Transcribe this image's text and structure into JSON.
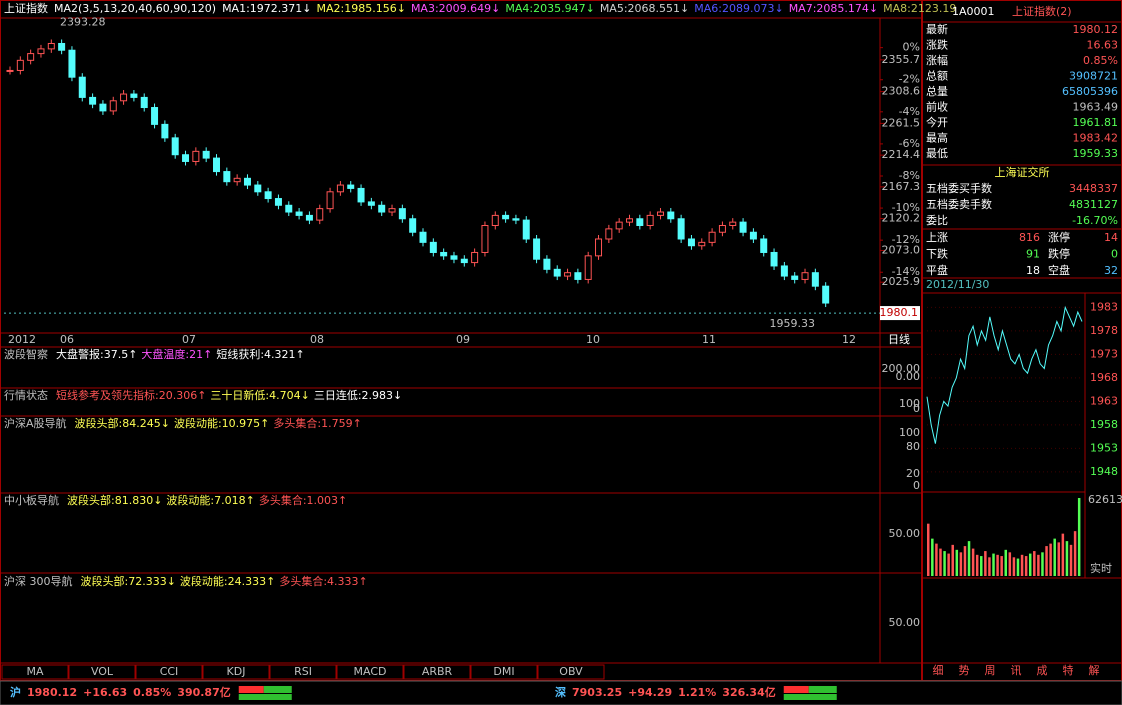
{
  "main_chart": {
    "title": "上证指数",
    "ma_params": "MA2(3,5,13,20,40,60,90,120)",
    "ma_labels": [
      {
        "text": "MA1:1972.371↓",
        "color": "#ffffff"
      },
      {
        "text": "MA2:1985.156↓",
        "color": "#ffff54"
      },
      {
        "text": "MA3:2009.649↓",
        "color": "#ff54ff"
      },
      {
        "text": "MA4:2035.947↓",
        "color": "#54ff54"
      },
      {
        "text": "MA5:2068.551↓",
        "color": "#d0d0d0"
      },
      {
        "text": "MA6:2089.073↓",
        "color": "#5454ff"
      },
      {
        "text": "MA7:2085.174↓",
        "color": "#ff54ff"
      },
      {
        "text": "MA8:2123.19",
        "color": "#c0c054"
      }
    ],
    "closes": [
      2340,
      2355,
      2365,
      2372,
      2380,
      2370,
      2330,
      2300,
      2290,
      2280,
      2295,
      2305,
      2300,
      2285,
      2260,
      2240,
      2215,
      2205,
      2220,
      2210,
      2190,
      2175,
      2180,
      2170,
      2160,
      2150,
      2140,
      2130,
      2125,
      2118,
      2135,
      2160,
      2170,
      2165,
      2145,
      2140,
      2130,
      2135,
      2120,
      2100,
      2085,
      2070,
      2065,
      2060,
      2055,
      2070,
      2110,
      2125,
      2120,
      2118,
      2090,
      2060,
      2045,
      2035,
      2040,
      2030,
      2065,
      2090,
      2105,
      2115,
      2120,
      2110,
      2125,
      2130,
      2120,
      2090,
      2080,
      2085,
      2100,
      2110,
      2115,
      2100,
      2090,
      2070,
      2050,
      2035,
      2030,
      2040,
      2020,
      1995
    ],
    "ylim": [
      1955,
      2400
    ],
    "yticks": [
      2355.7,
      2308.6,
      2261.5,
      2214.4,
      2167.3,
      2120.2,
      {
        "value": 2073.0,
        "label": "2073.0"
      },
      2025.9
    ],
    "pct_lim": [
      -17.6,
      1.1
    ],
    "pct_ticks": [
      {
        "value": 0,
        "label": "0%"
      },
      {
        "value": -2,
        "label": "-2%"
      },
      {
        "value": -4,
        "label": "-4%"
      },
      {
        "value": -6,
        "label": "-6%"
      },
      {
        "value": -8,
        "label": "-8%"
      },
      {
        "value": -10,
        "label": "-10%"
      },
      {
        "value": -12,
        "label": "-12%"
      },
      {
        "value": -14,
        "label": "-14%"
      }
    ],
    "high": 2393.28,
    "low": 1959.33,
    "last": 1980.1,
    "date_labels": [
      "2012",
      "06",
      "07",
      "08",
      "09",
      "10",
      "11",
      "12"
    ],
    "period": "日线"
  },
  "panels": [
    {
      "name": "波段智察",
      "items": [
        {
          "text": "大盘警报:37.5↑",
          "color": "#ffffff"
        },
        {
          "text": "大盘温度:21↑",
          "color": "#ff54ff"
        },
        {
          "text": "短线获利:4.321↑",
          "color": "#ffffff"
        }
      ],
      "axis_labels": [
        "200.00",
        "0.00"
      ]
    },
    {
      "name": "行情状态",
      "items": [
        {
          "text": "短线参考及领先指标:20.306↑",
          "color": "#ff5454"
        },
        {
          "text": "三十日新低:4.704↓",
          "color": "#ffff54"
        },
        {
          "text": "三日连低:2.983↓",
          "color": "#ffffff"
        }
      ],
      "axis_labels": [
        "100",
        "0"
      ]
    },
    {
      "name": "沪深A股导航",
      "items": [
        {
          "text": "波段头部:84.245↓",
          "color": "#ffff54"
        },
        {
          "text": "波段动能:10.975↑",
          "color": "#ffff54"
        },
        {
          "text": "多头集合:1.759↑",
          "color": "#ff5454"
        }
      ],
      "axis_labels": [
        "100",
        "80",
        "20",
        "0"
      ]
    },
    {
      "name": "中小板导航",
      "items": [
        {
          "text": "波段头部:81.830↓",
          "color": "#ffff54"
        },
        {
          "text": "波段动能:7.018↑",
          "color": "#ffff54"
        },
        {
          "text": "多头集合:1.003↑",
          "color": "#ff5454"
        }
      ],
      "axis_labels": [
        "50.00"
      ]
    },
    {
      "name": "沪深 300导航",
      "items": [
        {
          "text": "波段头部:72.333↓",
          "color": "#ffff54"
        },
        {
          "text": "波段动能:24.333↑",
          "color": "#ffff54"
        },
        {
          "text": "多头集合:4.333↑",
          "color": "#ff5454"
        }
      ],
      "axis_labels": [
        "50.00"
      ]
    }
  ],
  "indicator_tabs": [
    "MA",
    "VOL",
    "CCI",
    "KDJ",
    "RSI",
    "MACD",
    "ARBR",
    "DMI",
    "OBV"
  ],
  "quote": {
    "code": "1A0001",
    "name": "上证指数(2)",
    "rows": [
      [
        "最新",
        "1980.12"
      ],
      [
        "涨跌",
        "16.63"
      ],
      [
        "涨幅",
        "0.85%"
      ],
      [
        "总额",
        "3908721"
      ],
      [
        "总量",
        "65805396"
      ],
      [
        "前收",
        "1963.49"
      ],
      [
        "今开",
        "1961.81"
      ],
      [
        "最高",
        "1983.42"
      ],
      [
        "最低",
        "1959.33"
      ]
    ],
    "exchange": "上海证交所",
    "order_rows": [
      [
        "五档委买手数",
        "3448337"
      ],
      [
        "五档委卖手数",
        "4831127"
      ],
      [
        "委比",
        "-16.70%"
      ]
    ],
    "breadth": [
      [
        "上涨",
        "816",
        "涨停",
        "14"
      ],
      [
        "下跌",
        "91",
        "跌停",
        "0"
      ],
      [
        "平盘",
        "18",
        "空盘",
        "32"
      ]
    ]
  },
  "intraday": {
    "date": "2012/11/30",
    "ylim": [
      1945,
      1985
    ],
    "yticks": [
      1983,
      1978,
      1973,
      1968,
      1963,
      1958,
      1953,
      1948
    ],
    "prices": [
      1964,
      1958,
      1954,
      1960,
      1963,
      1962,
      1966,
      1968,
      1972,
      1970,
      1977,
      1979,
      1975,
      1978,
      1976,
      1981,
      1977,
      1974,
      1978,
      1975,
      1972,
      1971,
      1973,
      1970,
      1969,
      1972,
      1974,
      1971,
      1970,
      1975,
      1977,
      1980,
      1978,
      1983,
      1981,
      1979,
      1982,
      1980
    ],
    "vlim": [
      0,
      62613
    ],
    "vol_label": 62613,
    "volumes": [
      42000,
      30000,
      26000,
      22000,
      20000,
      18000,
      25000,
      21000,
      19000,
      24000,
      28000,
      22000,
      17000,
      16000,
      20000,
      15000,
      18000,
      17000,
      16000,
      21000,
      19000,
      15000,
      14000,
      17000,
      16000,
      18000,
      20000,
      17000,
      19000,
      24000,
      26000,
      30000,
      27000,
      34000,
      28000,
      25000,
      36000,
      62613
    ],
    "realtime": "实时"
  },
  "right_tabs": [
    "细",
    "势",
    "周",
    "讯",
    "成",
    "特",
    "解"
  ],
  "status": [
    {
      "market": "沪",
      "price": "1980.12",
      "change": "+16.63",
      "pct": "0.85%",
      "amount": "390.87亿"
    },
    {
      "market": "深",
      "price": "7903.25",
      "change": "+94.29",
      "pct": "1.21%",
      "amount": "326.34亿"
    }
  ]
}
